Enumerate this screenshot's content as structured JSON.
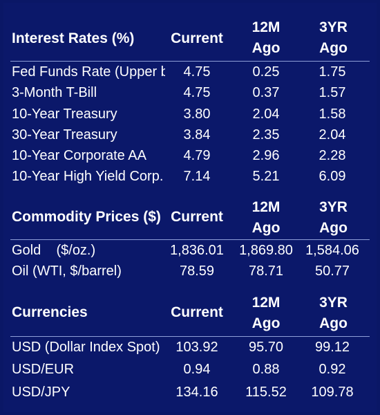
{
  "sections": [
    {
      "title": "Interest Rates (%)",
      "col_current": "Current",
      "col_12m_top": "12M",
      "col_12m_bottom": "Ago",
      "col_3yr_top": "3YR",
      "col_3yr_bottom": "Ago",
      "rows": [
        {
          "label": "Fed Funds Rate (Upper b",
          "current": "4.75",
          "m12": "0.25",
          "yr3": "1.75"
        },
        {
          "label": "3-Month T-Bill",
          "current": "4.75",
          "m12": "0.37",
          "yr3": "1.57"
        },
        {
          "label": "10-Year Treasury",
          "current": "3.80",
          "m12": "2.04",
          "yr3": "1.58"
        },
        {
          "label": "30-Year Treasury",
          "current": "3.84",
          "m12": "2.35",
          "yr3": "2.04"
        },
        {
          "label": "10-Year Corporate AA",
          "current": "4.79",
          "m12": "2.96",
          "yr3": "2.28"
        },
        {
          "label": "10-Year High Yield Corp.",
          "current": "7.14",
          "m12": "5.21",
          "yr3": "6.09"
        }
      ]
    },
    {
      "title": "Commodity Prices ($)",
      "col_current": "Current",
      "col_12m_top": "12M",
      "col_12m_bottom": "Ago",
      "col_3yr_top": "3YR",
      "col_3yr_bottom": "Ago",
      "rows": [
        {
          "label": "Gold    ($/oz.)",
          "current": "1,836.01",
          "m12": "1,869.80",
          "yr3": "1,584.06"
        },
        {
          "label": "Oil (WTI, $/barrel)",
          "current": "78.59",
          "m12": "78.71",
          "yr3": "50.77"
        }
      ]
    },
    {
      "title": "Currencies",
      "col_current": "Current",
      "col_12m_top": "12M",
      "col_12m_bottom": "Ago",
      "col_3yr_top": "3YR",
      "col_3yr_bottom": "Ago",
      "rows": [
        {
          "label": "USD (Dollar Index Spot)",
          "current": "103.92",
          "m12": "95.70",
          "yr3": "99.12"
        },
        {
          "label": "USD/EUR",
          "current": "0.94",
          "m12": "0.88",
          "yr3": "0.92"
        },
        {
          "label": "USD/JPY",
          "current": "134.16",
          "m12": "115.52",
          "yr3": "109.78"
        }
      ]
    }
  ],
  "colors": {
    "background": "#0b186a",
    "text": "#ffffff",
    "rule": "#8f9fd8"
  }
}
